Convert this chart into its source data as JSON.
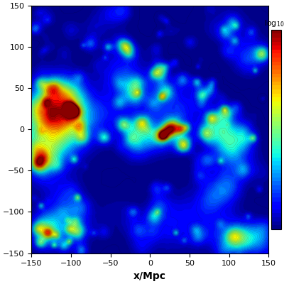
{
  "xlabel": "x/Mpc",
  "xlim": [
    -150,
    150
  ],
  "ylim": [
    -150,
    150
  ],
  "yticks": [
    -150,
    -100,
    -50,
    0,
    50,
    100,
    150
  ],
  "xticks": [
    -150,
    -100,
    -50,
    0,
    50,
    100,
    150
  ],
  "colormap": "jet",
  "vmin": 0.0,
  "vmax": 1.0,
  "n_contour_levels": 50,
  "seed": 137,
  "grid_size": 300,
  "large_scale_sigma": 25,
  "small_scale_sigma": 6,
  "n_clusters_large": 15,
  "n_clusters_medium": 60,
  "n_clusters_small": 150,
  "colorbar_label": "log\\u2081\\u2080(",
  "figsize": [
    4.0,
    4.0
  ],
  "dpi": 100
}
